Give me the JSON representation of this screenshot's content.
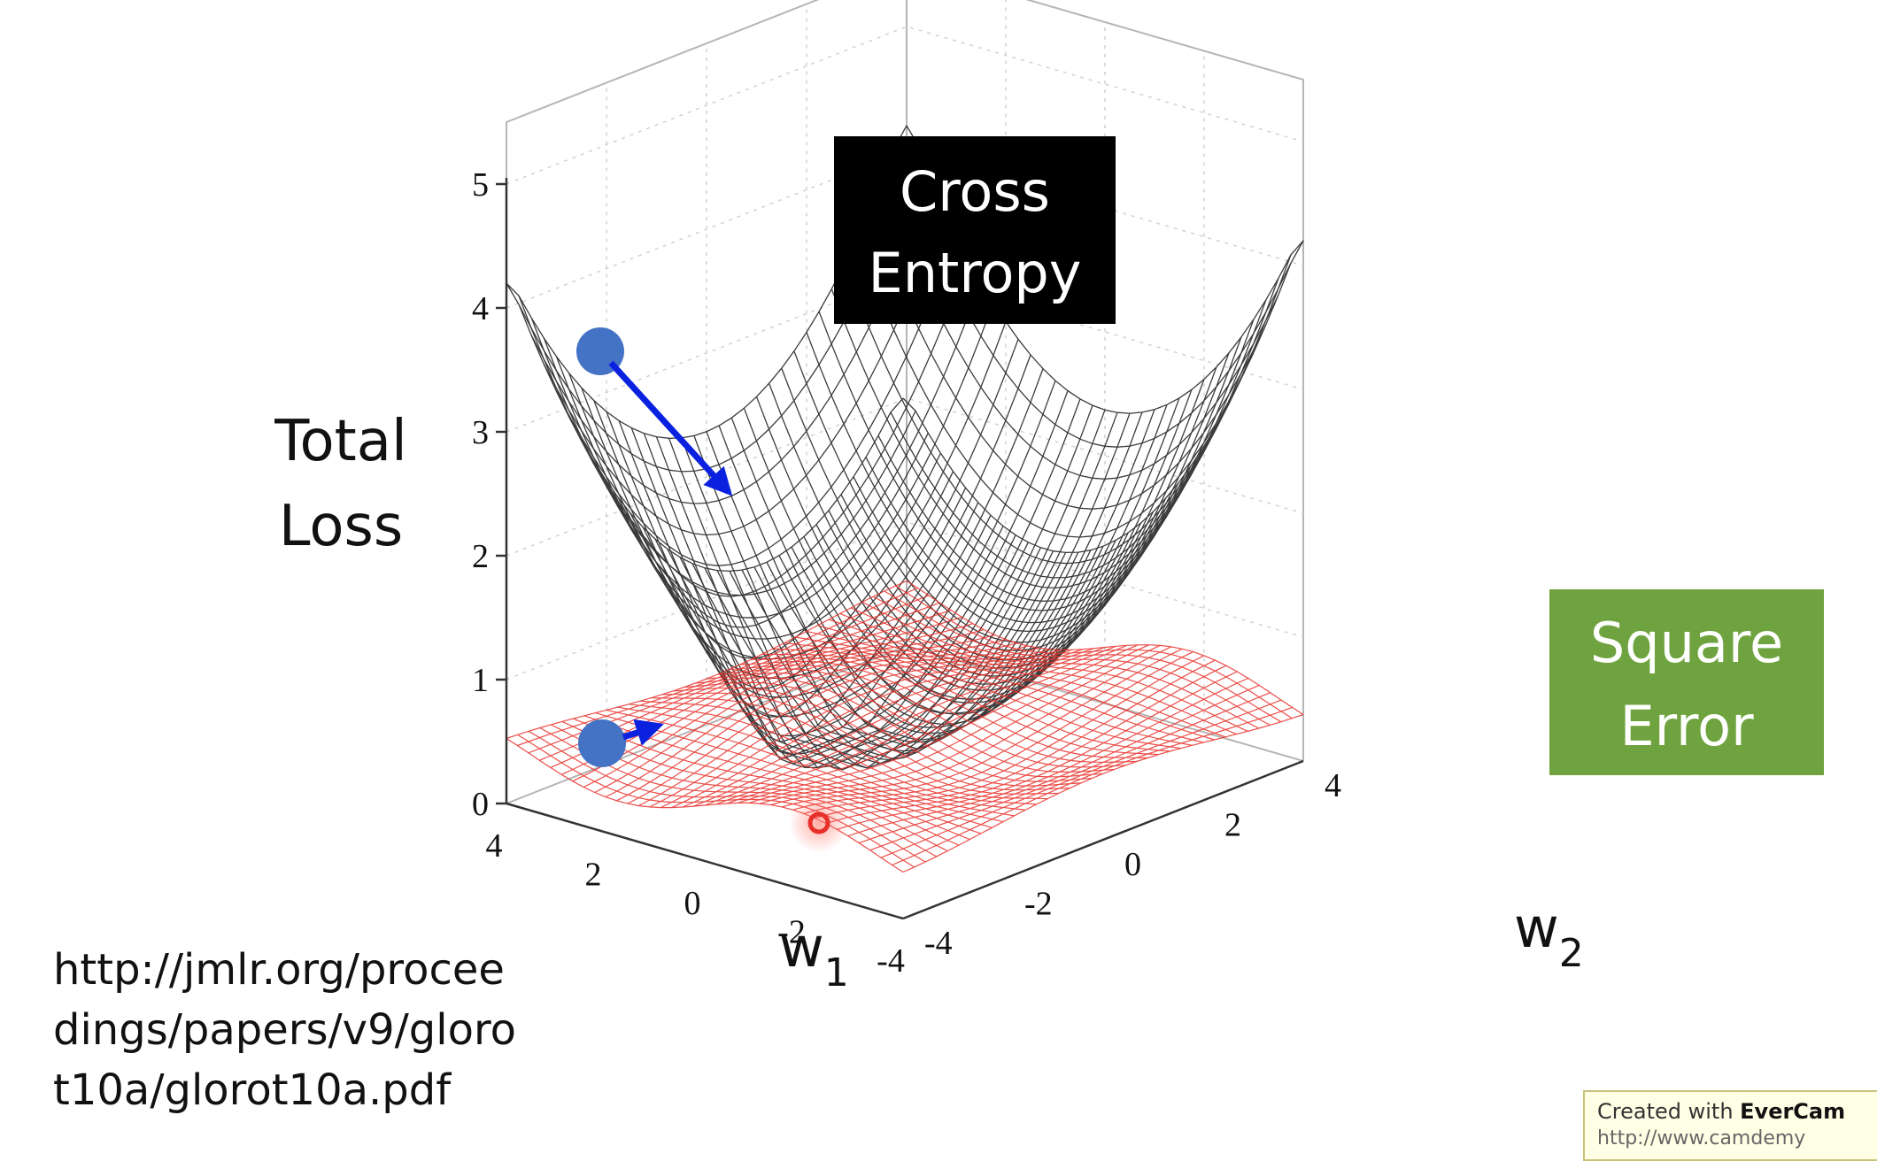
{
  "chart_data": {
    "type": "surface",
    "title": "",
    "zlabel_lines": [
      "Total",
      "Loss"
    ],
    "xlabel": "w",
    "xlabel_sub": "1",
    "ylabel": "w",
    "ylabel_sub": "2",
    "z_ticks": [
      "0",
      "1",
      "2",
      "3",
      "4",
      "5"
    ],
    "x_ticks": [
      "4",
      "2",
      "0",
      "-2",
      "-4"
    ],
    "y_ticks": [
      "-4",
      "-2",
      "0",
      "2",
      "4"
    ],
    "xlim": [
      -4,
      4
    ],
    "ylim": [
      -4,
      4
    ],
    "zlim": [
      0,
      5
    ],
    "grid": true,
    "series": [
      {
        "name": "Cross Entropy",
        "color": "#1a1a1a",
        "surface": "cross-entropy-total-loss"
      },
      {
        "name": "Square Error",
        "color": "#e8302a",
        "surface": "square-error-total-loss"
      }
    ],
    "annotations": [
      {
        "text_lines": [
          "Cross",
          "Entropy"
        ],
        "style": "black-box",
        "bg": "#000000",
        "fg": "#ffffff"
      },
      {
        "text_lines": [
          "Square",
          "Error"
        ],
        "style": "green-box",
        "bg": "#6fa33f",
        "fg": "#ffffff"
      }
    ],
    "markers": [
      {
        "kind": "start-point",
        "surface": "Cross Entropy",
        "color": "#4472c4"
      },
      {
        "kind": "start-point",
        "surface": "Square Error",
        "color": "#4472c4"
      },
      {
        "kind": "gradient-arrow",
        "color": "#0a22e0"
      },
      {
        "kind": "pointer-dot",
        "color": "#e8302a"
      }
    ]
  },
  "url_lines": [
    "http://jmlr.org/procee",
    "dings/papers/v9/gloro",
    "t10a/glorot10a.pdf"
  ],
  "watermark": {
    "prefix": "Created with ",
    "brand": "EverCam",
    "url": "http://www.camdemy"
  }
}
